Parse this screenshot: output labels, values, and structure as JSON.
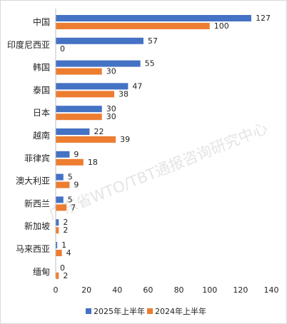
{
  "chart_data": {
    "type": "bar",
    "orientation": "horizontal",
    "categories": [
      "中国",
      "印度尼西亚",
      "韩国",
      "泰国",
      "日本",
      "越南",
      "菲律宾",
      "澳大利亚",
      "新西兰",
      "新加坡",
      "马来西亚",
      "缅甸"
    ],
    "series": [
      {
        "name": "2025年上半年",
        "color": "#4472c4",
        "values": [
          127,
          57,
          55,
          47,
          30,
          22,
          9,
          5,
          5,
          2,
          1,
          0
        ]
      },
      {
        "name": "2024年上半年",
        "color": "#ed7d31",
        "values": [
          100,
          0,
          30,
          38,
          30,
          39,
          18,
          9,
          7,
          2,
          4,
          2
        ]
      }
    ],
    "xlim": [
      0,
      140
    ],
    "xticks": [
      "0",
      "20",
      "40",
      "60",
      "80",
      "100",
      "120",
      "140"
    ],
    "grid": false,
    "legend_position": "bottom"
  },
  "watermark": "广东省WTO/TBT通报咨询研究中心"
}
